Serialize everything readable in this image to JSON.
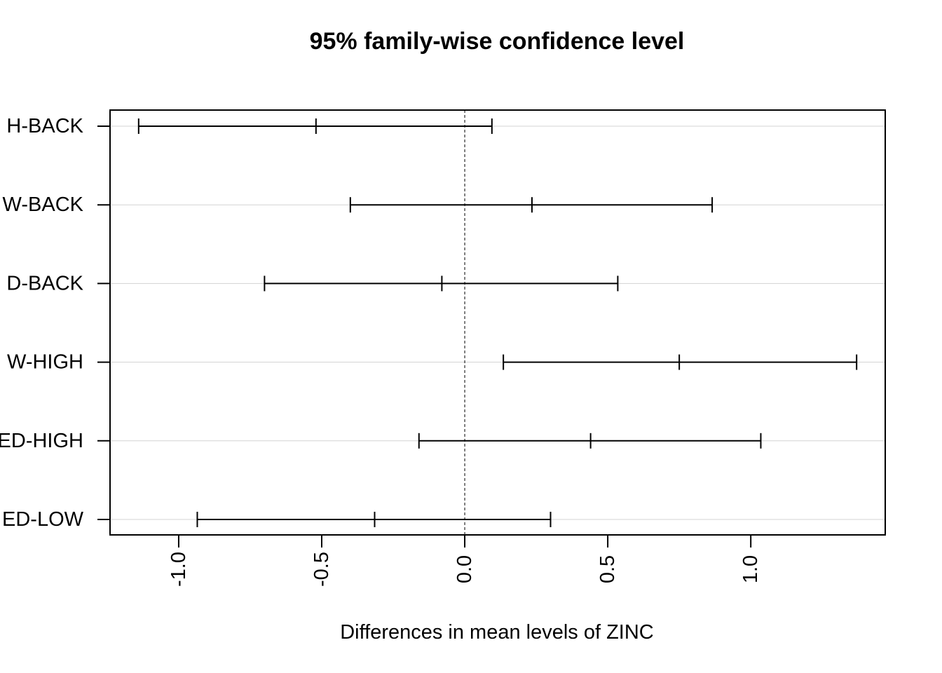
{
  "chart_data": {
    "type": "interval",
    "title": "95% family-wise confidence level",
    "xlabel": "Differences in mean levels of ZINC",
    "ylabel": "",
    "xlim": [
      -1.24,
      1.47
    ],
    "x_ticks": [
      "-1.0",
      "-0.5",
      "0.0",
      "0.5",
      "1.0"
    ],
    "x_tick_values": [
      -1.0,
      -0.5,
      0.0,
      0.5,
      1.0
    ],
    "reference_line": 0.0,
    "grid": "horizontal",
    "series": [
      {
        "label": "H-BACK",
        "lwr": -1.14,
        "diff": -0.52,
        "upr": 0.095
      },
      {
        "label": "W-BACK",
        "lwr": -0.4,
        "diff": 0.235,
        "upr": 0.865
      },
      {
        "label": "D-BACK",
        "lwr": -0.7,
        "diff": -0.08,
        "upr": 0.535
      },
      {
        "label": "W-HIGH",
        "lwr": 0.135,
        "diff": 0.75,
        "upr": 1.37
      },
      {
        "label": "ED-HIGH",
        "lwr": -0.16,
        "diff": 0.44,
        "upr": 1.035
      },
      {
        "label": "ED-LOW",
        "lwr": -0.935,
        "diff": -0.315,
        "upr": 0.3
      }
    ]
  }
}
